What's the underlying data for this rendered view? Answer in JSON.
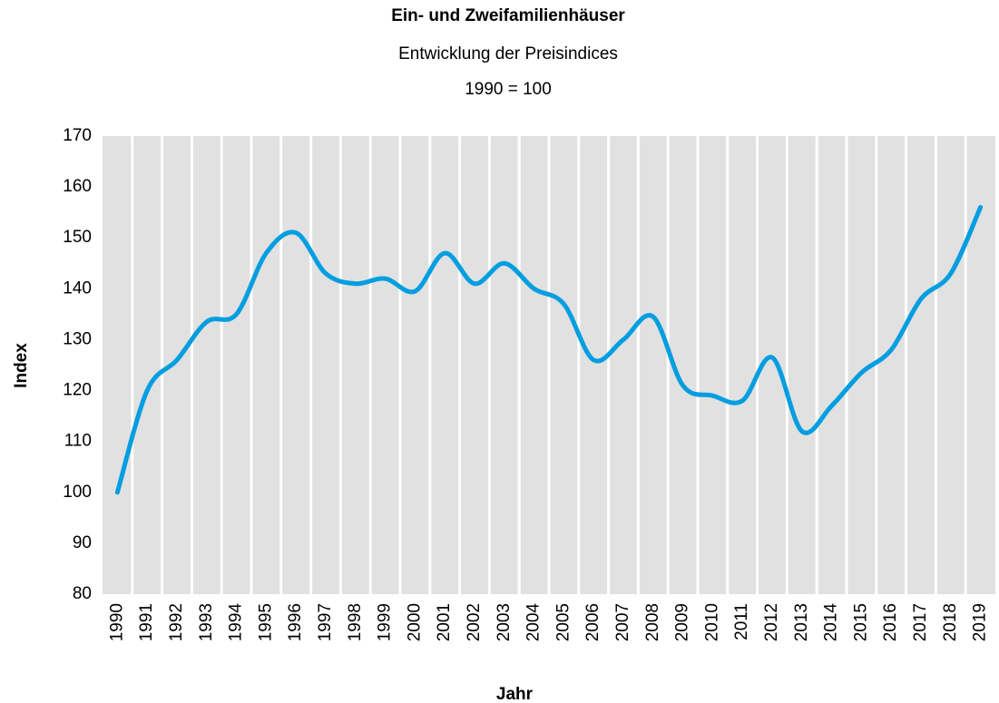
{
  "chart_data": {
    "type": "line",
    "title": "Ein- und Zweifamilienhäuser",
    "subtitle": [
      "Entwicklung der Preisindices",
      "1990 = 100"
    ],
    "x_label": "Jahr",
    "y_label": "Index",
    "categories": [
      "1990",
      "1991",
      "1992",
      "1993",
      "1994",
      "1995",
      "1996",
      "1997",
      "1998",
      "1999",
      "2000",
      "2001",
      "2002",
      "2003",
      "2004",
      "2005",
      "2006",
      "2007",
      "2008",
      "2009",
      "2010",
      "2011",
      "2012",
      "2013",
      "2014",
      "2015",
      "2016",
      "2017",
      "2018",
      "2019"
    ],
    "series": [
      {
        "name": "Index",
        "color": "#009ee0",
        "values": [
          100,
          120,
          126,
          133.5,
          135,
          147,
          151,
          143,
          141,
          142,
          139.5,
          147,
          141,
          145,
          140,
          137,
          126,
          130,
          134.5,
          121,
          119,
          118,
          126.5,
          112,
          117,
          123.5,
          128,
          138,
          143,
          156
        ]
      }
    ],
    "ylim": [
      80,
      170
    ],
    "yticks": [
      80,
      90,
      100,
      110,
      120,
      130,
      140,
      150,
      160,
      170
    ],
    "smooth": true,
    "background": "#e1e1e1"
  }
}
